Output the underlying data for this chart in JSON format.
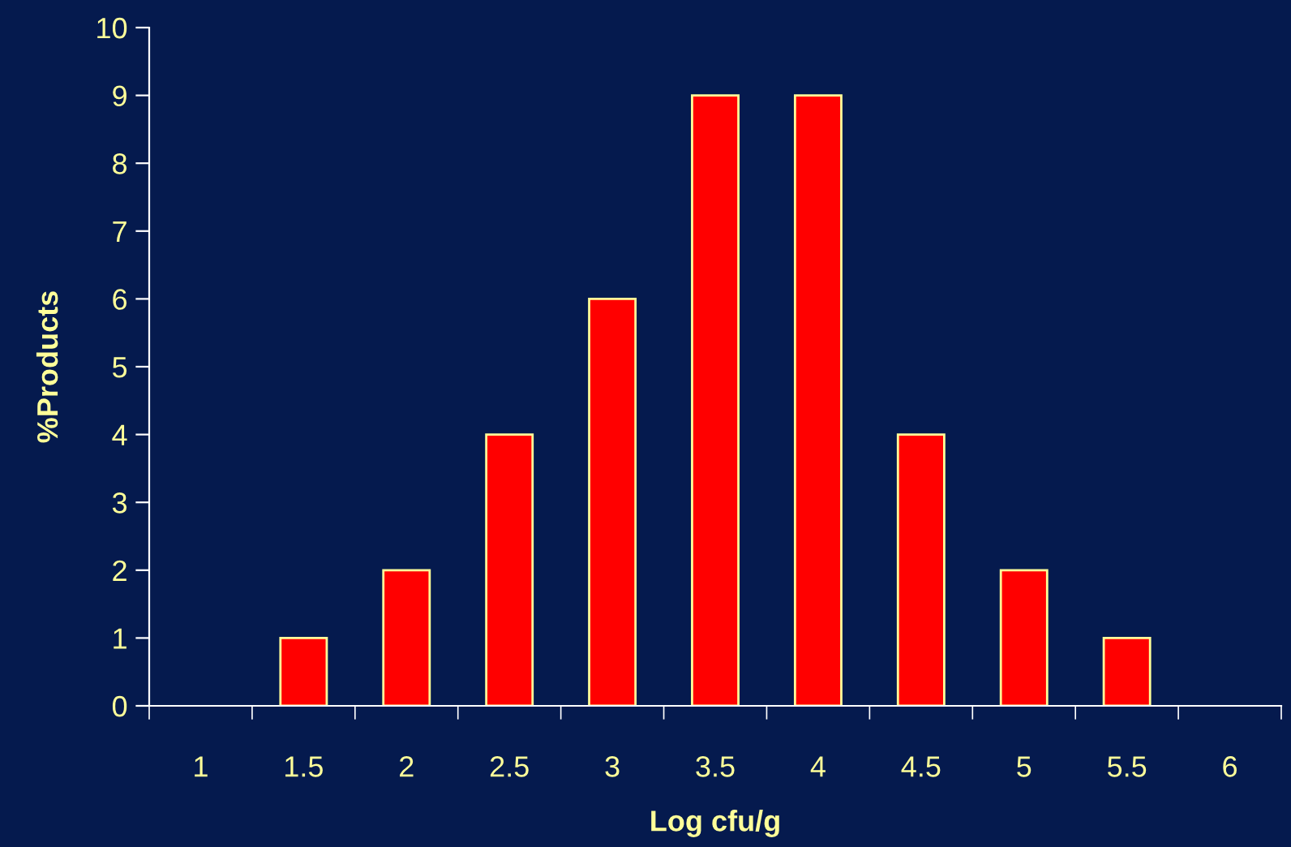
{
  "chart_data": {
    "type": "bar",
    "xlabel": "Log cfu/g",
    "ylabel": "%Products",
    "categories": [
      "1",
      "1.5",
      "2",
      "2.5",
      "3",
      "3.5",
      "4",
      "4.5",
      "5",
      "5.5",
      "6"
    ],
    "values": [
      0,
      1,
      2,
      4,
      6,
      9,
      9,
      4,
      2,
      1,
      0
    ],
    "color": "#ff0000",
    "ylim": [
      0,
      10
    ],
    "yticks": [
      0,
      1,
      2,
      3,
      4,
      5,
      6,
      7,
      8,
      9,
      10
    ],
    "grid": false,
    "legend": false
  }
}
